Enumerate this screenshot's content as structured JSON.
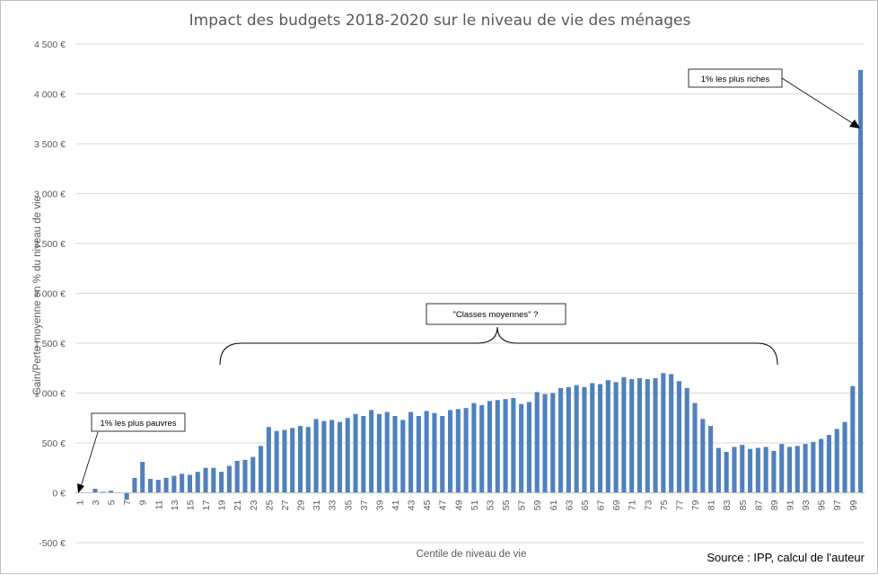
{
  "chart_data": {
    "type": "bar",
    "title": "Impact des budgets 2018-2020 sur le niveau de vie des ménages",
    "xlabel": "Centile de niveau de vie",
    "ylabel": "Gain/Perte moyenne en % du niveau de vie",
    "source": "Source : IPP, calcul de l'auteur",
    "ylim": [
      -500,
      4500
    ],
    "yticks": [
      "-500 €",
      "0 €",
      "500 €",
      "1 000 €",
      "1 500 €",
      "2 000 €",
      "2 500 €",
      "3 000 €",
      "3 500 €",
      "4 000 €",
      "4 500 €"
    ],
    "ytick_values": [
      -500,
      0,
      500,
      1000,
      1500,
      2000,
      2500,
      3000,
      3500,
      4000,
      4500
    ],
    "grid": true,
    "color": "#4f81bd",
    "categories": [
      1,
      2,
      3,
      4,
      5,
      6,
      7,
      8,
      9,
      10,
      11,
      12,
      13,
      14,
      15,
      16,
      17,
      18,
      19,
      20,
      21,
      22,
      23,
      24,
      25,
      26,
      27,
      28,
      29,
      30,
      31,
      32,
      33,
      34,
      35,
      36,
      37,
      38,
      39,
      40,
      41,
      42,
      43,
      44,
      45,
      46,
      47,
      48,
      49,
      50,
      51,
      52,
      53,
      54,
      55,
      56,
      57,
      58,
      59,
      60,
      61,
      62,
      63,
      64,
      65,
      66,
      67,
      68,
      69,
      70,
      71,
      72,
      73,
      74,
      75,
      76,
      77,
      78,
      79,
      80,
      81,
      82,
      83,
      84,
      85,
      86,
      87,
      88,
      89,
      90,
      91,
      92,
      93,
      94,
      95,
      96,
      97,
      98,
      99,
      100
    ],
    "xtick_labels": [
      "1",
      "3",
      "5",
      "7",
      "9",
      "11",
      "13",
      "15",
      "17",
      "19",
      "21",
      "23",
      "25",
      "27",
      "29",
      "31",
      "33",
      "35",
      "37",
      "39",
      "41",
      "43",
      "45",
      "47",
      "49",
      "51",
      "53",
      "55",
      "57",
      "59",
      "61",
      "63",
      "65",
      "67",
      "69",
      "71",
      "73",
      "75",
      "77",
      "79",
      "81",
      "83",
      "85",
      "87",
      "89",
      "91",
      "93",
      "95",
      "97",
      "99"
    ],
    "values": [
      5,
      0,
      40,
      10,
      20,
      0,
      -70,
      150,
      310,
      140,
      130,
      150,
      170,
      190,
      180,
      210,
      250,
      250,
      210,
      270,
      320,
      330,
      360,
      470,
      660,
      620,
      630,
      650,
      670,
      660,
      740,
      720,
      730,
      710,
      750,
      790,
      770,
      830,
      790,
      810,
      770,
      730,
      810,
      770,
      820,
      800,
      770,
      830,
      840,
      850,
      900,
      880,
      920,
      930,
      940,
      950,
      890,
      910,
      1010,
      990,
      1000,
      1050,
      1060,
      1080,
      1060,
      1100,
      1090,
      1130,
      1110,
      1160,
      1140,
      1150,
      1140,
      1150,
      1200,
      1190,
      1120,
      1050,
      900,
      740,
      670,
      450,
      410,
      460,
      480,
      440,
      450,
      460,
      420,
      490,
      460,
      470,
      490,
      510,
      540,
      580,
      640,
      710,
      1070,
      4240
    ]
  },
  "annotations": {
    "poorest": "1% les plus pauvres",
    "richest": "1% les plus riches",
    "middle": "\"Classes moyennes\" ?"
  }
}
